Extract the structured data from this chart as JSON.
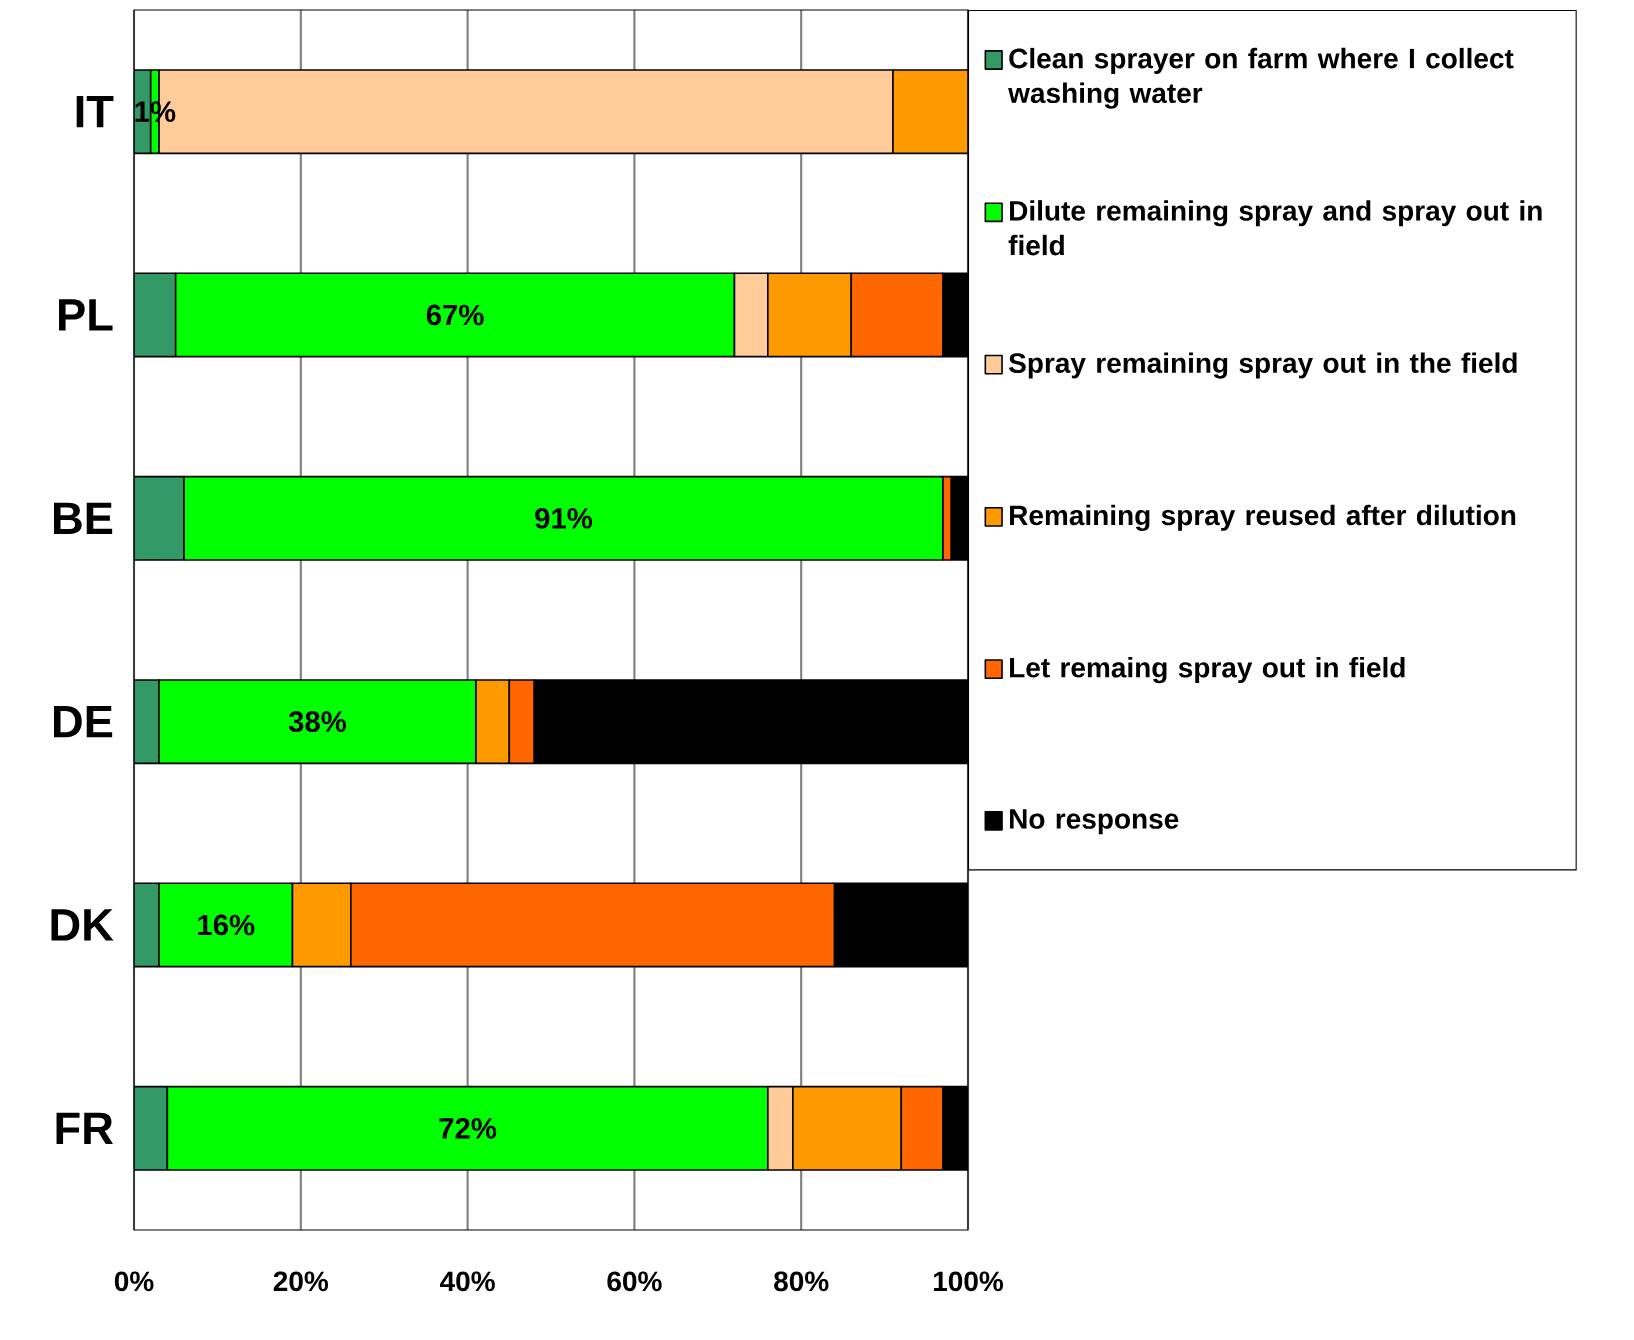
{
  "chart_data": {
    "type": "bar",
    "orientation": "horizontal",
    "stacked": true,
    "categories": [
      "IT",
      "PL",
      "BE",
      "DE",
      "DK",
      "FR"
    ],
    "series": [
      {
        "name": "Clean sprayer on farm where I collect washing water",
        "color": "#339966",
        "values": [
          2,
          5,
          6,
          3,
          3,
          4
        ]
      },
      {
        "name": "Dilute remaining spray and spray out in field",
        "color": "#00ff00",
        "values": [
          1,
          67,
          91,
          38,
          16,
          72
        ],
        "value_labels": [
          "1%",
          "67%",
          "91%",
          "38%",
          "16%",
          "72%"
        ]
      },
      {
        "name": "Spray remaining spray out in the field",
        "color": "#ffcc99",
        "values": [
          88,
          4,
          null,
          null,
          null,
          3
        ]
      },
      {
        "name": "Remaining spray reused after dilution",
        "color": "#ff9900",
        "values": [
          9,
          10,
          null,
          4,
          7,
          13
        ]
      },
      {
        "name": "Let remaing spray out in field",
        "color": "#ff6600",
        "values": [
          null,
          11,
          1,
          3,
          58,
          5
        ]
      },
      {
        "name": "No response",
        "color": "#000000",
        "values": [
          null,
          3,
          2,
          52,
          16,
          3
        ]
      }
    ],
    "xlim": [
      0,
      100
    ],
    "xticks": [
      {
        "value": 0,
        "label": "0%"
      },
      {
        "value": 20,
        "label": "20%"
      },
      {
        "value": 40,
        "label": "40%"
      },
      {
        "value": 60,
        "label": "60%"
      },
      {
        "value": 80,
        "label": "80%"
      },
      {
        "value": 100,
        "label": "100%"
      }
    ],
    "grid": "x",
    "legend": "right"
  }
}
